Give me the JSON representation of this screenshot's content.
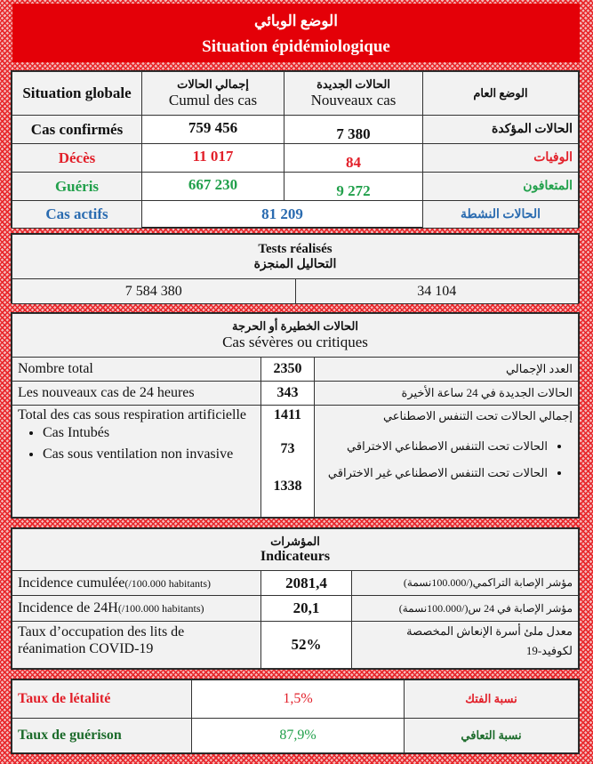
{
  "header": {
    "title_ar": "الوضع الوبائي",
    "title_fr": "Situation épidémiologique"
  },
  "situation": {
    "headers": {
      "fr": "Situation globale",
      "cumul_ar": "إجمالي الحالات",
      "cumul_fr": "Cumul des cas",
      "new_ar": "الحالات الجديدة",
      "new_fr": "Nouveaux cas",
      "ar": "الوضع العام"
    },
    "rows": [
      {
        "fr": "Cas confirmés",
        "cumul": "759 456",
        "new": "7 380",
        "ar": "الحالات المؤكدة",
        "color": "#111111"
      },
      {
        "fr": "Décès",
        "cumul": "11 017",
        "new": "84",
        "ar": "الوفيات",
        "color": "#e2202a"
      },
      {
        "fr": "Guéris",
        "cumul": "667 230",
        "new": "9 272",
        "ar": "المتعافون",
        "color": "#21a04b"
      }
    ],
    "active": {
      "fr": "Cas actifs",
      "value": "81 209",
      "ar": "الحالات النشطة",
      "color": "#2a6bb0"
    }
  },
  "tests": {
    "title_fr": "Tests réalisés",
    "title_ar": "التحاليل المنجزة",
    "cumul": "7 584 380",
    "new": "34 104"
  },
  "severe": {
    "title_ar": "الحالات الخطيرة أو الحرجة",
    "title_fr": "Cas sévères ou critiques",
    "total": {
      "fr": "Nombre total",
      "value": "2350",
      "ar": "العدد الإجمالي"
    },
    "new24": {
      "fr": "Les nouveaux cas de 24 heures",
      "value": "343",
      "ar": "الحالات الجديدة في 24 ساعة الأخيرة"
    },
    "resp": {
      "fr": "Total des cas sous respiration artificielle",
      "value": "1411",
      "ar": "إجمالي الحالات تحت التنفس الاصطناعي",
      "intub_fr": "Cas Intubés",
      "intub_value": "73",
      "intub_ar": "الحالات تحت التنفس الاصطناعي الاختراقي",
      "niv_fr": "Cas sous ventilation non invasive",
      "niv_value": "1338",
      "niv_ar": "الحالات تحت التنفس الاصطناعي غير الاختراقي"
    }
  },
  "indicators": {
    "title_ar": "المؤشرات",
    "title_fr": "Indicateurs",
    "rows": [
      {
        "fr": "Incidence cumulée",
        "unit": "(/100.000 habitants)",
        "value": "2081,4",
        "ar": "مؤشر الإصابة التراكمي(/100.000نسمة)"
      },
      {
        "fr": "Incidence de 24H",
        "unit": "(/100.000 habitants)",
        "value": "20,1",
        "ar": "مؤشر الإصابة في 24 س(/100.000نسمة)"
      },
      {
        "fr": "Taux d’occupation des lits de réanimation COVID-19",
        "unit": "",
        "value": "52%",
        "ar": "معدل ملئ أسرة الإنعاش المخصصة لكوفيد-19"
      }
    ]
  },
  "rates": {
    "lethality": {
      "fr": "Taux de létalité",
      "value": "1,5%",
      "ar": "نسبة الفتك",
      "color": "#e2202a"
    },
    "recovery": {
      "fr": "Taux de guérison",
      "value": "87,9%",
      "ar": "نسبة التعافي",
      "color": "#21a04b"
    }
  }
}
